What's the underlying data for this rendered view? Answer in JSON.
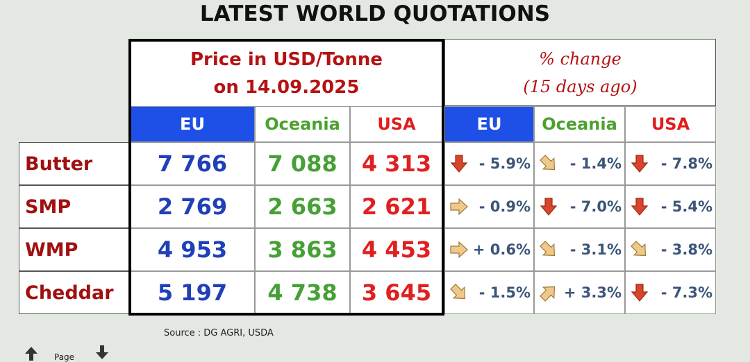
{
  "title": "LATEST WORLD QUOTATIONS",
  "price_header": {
    "line1": "Price in USD/Tonne",
    "line2": "on 14.09.2025"
  },
  "change_header": {
    "line1": "% change",
    "line2": "(15 days ago)"
  },
  "regions": [
    "EU",
    "Oceania",
    "USA"
  ],
  "rows": [
    {
      "product": "Butter",
      "prices": [
        "7 766",
        "7 088",
        "4 313"
      ],
      "changes": [
        {
          "value": "- 5.9%",
          "trend": "down-icon"
        },
        {
          "value": "- 1.4%",
          "trend": "down-right-icon"
        },
        {
          "value": "- 7.8%",
          "trend": "down-icon"
        }
      ]
    },
    {
      "product": "SMP",
      "prices": [
        "2 769",
        "2 663",
        "2 621"
      ],
      "changes": [
        {
          "value": "- 0.9%",
          "trend": "right-icon"
        },
        {
          "value": "- 7.0%",
          "trend": "down-icon"
        },
        {
          "value": "- 5.4%",
          "trend": "down-icon"
        }
      ]
    },
    {
      "product": "WMP",
      "prices": [
        "4 953",
        "3 863",
        "4 453"
      ],
      "changes": [
        {
          "value": "+ 0.6%",
          "trend": "right-icon"
        },
        {
          "value": "- 3.1%",
          "trend": "down-right-icon"
        },
        {
          "value": "- 3.8%",
          "trend": "down-right-icon"
        }
      ]
    },
    {
      "product": "Cheddar",
      "prices": [
        "5 197",
        "4 738",
        "3 645"
      ],
      "changes": [
        {
          "value": "- 1.5%",
          "trend": "down-right-icon"
        },
        {
          "value": "+ 3.3%",
          "trend": "up-right-icon"
        },
        {
          "value": "- 7.3%",
          "trend": "down-icon"
        }
      ]
    }
  ],
  "source": "Source : DG AGRI, USDA",
  "nav": {
    "label": "Page",
    "up_icon": "arrow-up-icon",
    "down_icon": "arrow-down-icon"
  },
  "colors": {
    "eu": "#1e50e8",
    "oceania": "#45a035",
    "usa": "#e02020",
    "product": "#a01010",
    "arrow_down": "#d8452a",
    "arrow_flat": "#efc98a"
  }
}
